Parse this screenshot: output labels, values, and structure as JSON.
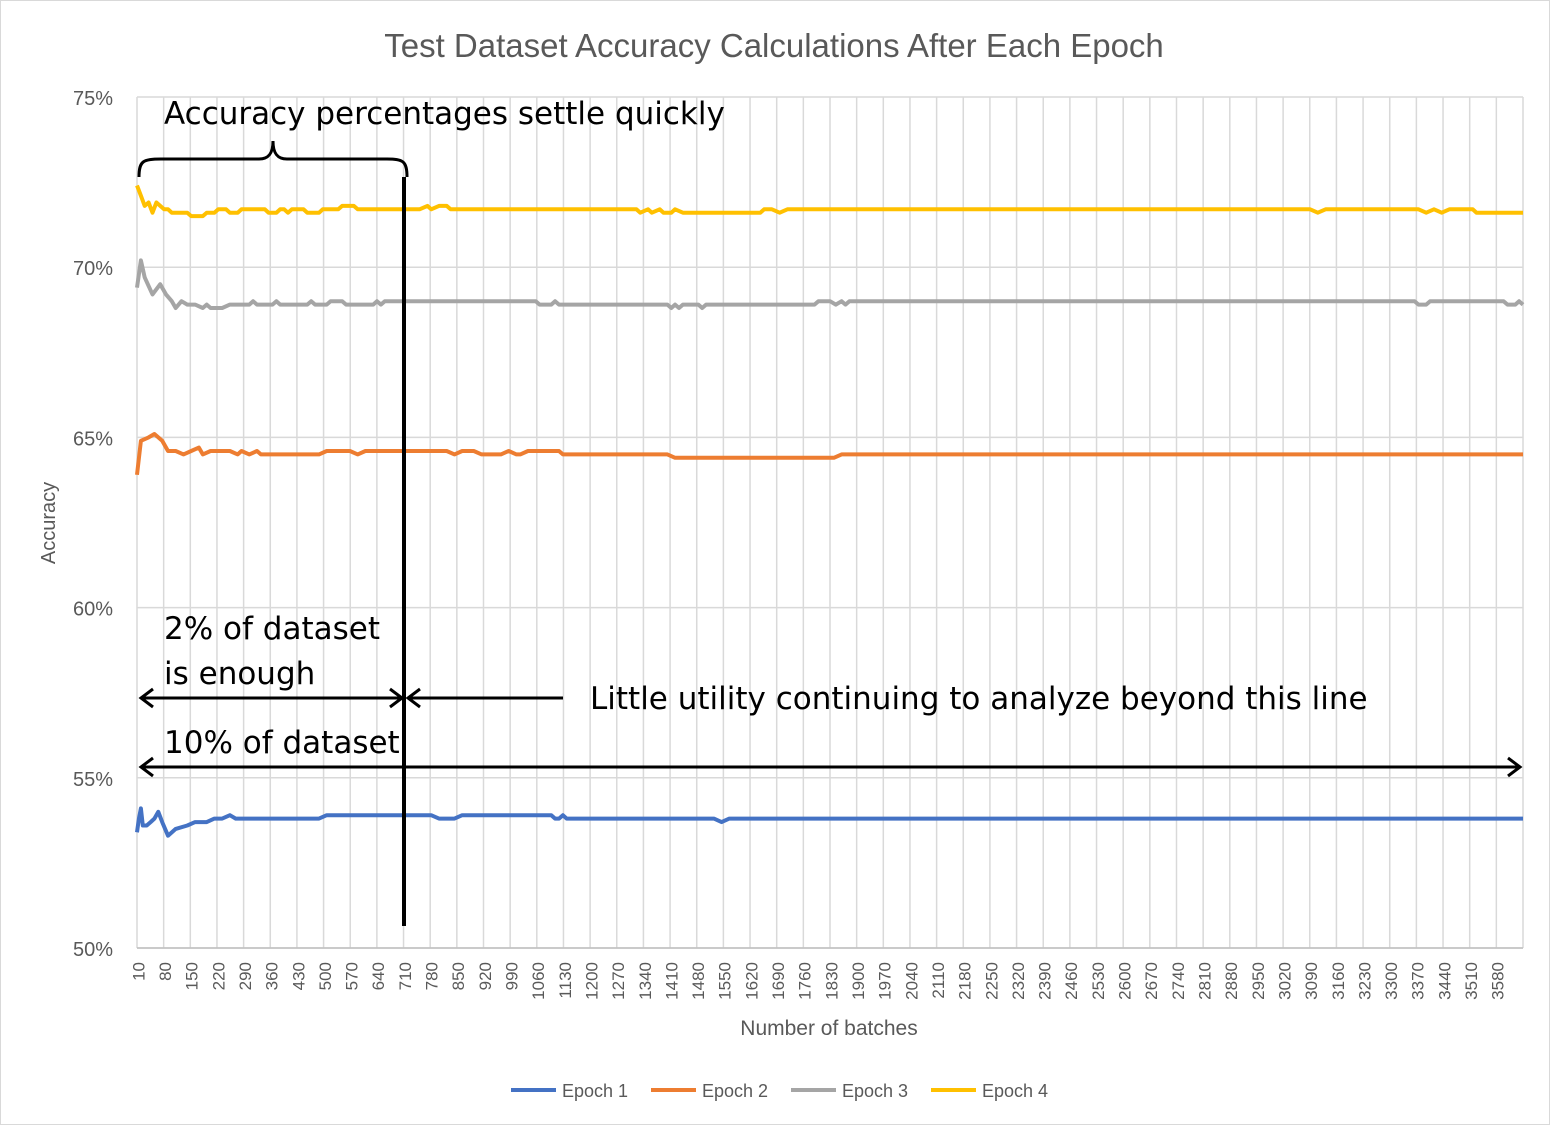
{
  "chart_data": {
    "type": "line",
    "title": "Test Dataset Accuracy Calculations After Each Epoch",
    "xlabel": "Number of batches",
    "ylabel": "Accuracy",
    "ylim": [
      50,
      75
    ],
    "y_ticks": [
      "50%",
      "55%",
      "60%",
      "65%",
      "70%",
      "75%"
    ],
    "y_tick_values": [
      50,
      55,
      60,
      65,
      70,
      75
    ],
    "x_range": [
      10,
      3590
    ],
    "x_tick_labels": [
      "10",
      "80",
      "150",
      "220",
      "290",
      "360",
      "430",
      "500",
      "570",
      "640",
      "710",
      "780",
      "850",
      "920",
      "990",
      "1060",
      "1130",
      "1200",
      "1270",
      "1340",
      "1410",
      "1480",
      "1550",
      "1620",
      "1690",
      "1760",
      "1830",
      "1900",
      "1970",
      "2040",
      "2110",
      "2180",
      "2250",
      "2320",
      "2390",
      "2460",
      "2530",
      "2600",
      "2670",
      "2740",
      "2810",
      "2880",
      "2950",
      "3020",
      "3090",
      "3160",
      "3230",
      "3300",
      "3370",
      "3440",
      "3510",
      "3580"
    ],
    "grid": true,
    "legend_position": "bottom",
    "series": [
      {
        "name": "Epoch 1",
        "color": "#4472C4",
        "points": [
          [
            10,
            53.4
          ],
          [
            15,
            53.8
          ],
          [
            20,
            54.1
          ],
          [
            25,
            53.6
          ],
          [
            35,
            53.6
          ],
          [
            45,
            53.7
          ],
          [
            55,
            53.8
          ],
          [
            65,
            54.0
          ],
          [
            75,
            53.7
          ],
          [
            90,
            53.3
          ],
          [
            110,
            53.5
          ],
          [
            140,
            53.6
          ],
          [
            160,
            53.7
          ],
          [
            190,
            53.7
          ],
          [
            210,
            53.8
          ],
          [
            230,
            53.8
          ],
          [
            250,
            53.9
          ],
          [
            265,
            53.8
          ],
          [
            480,
            53.8
          ],
          [
            500,
            53.9
          ],
          [
            770,
            53.9
          ],
          [
            790,
            53.8
          ],
          [
            830,
            53.8
          ],
          [
            850,
            53.9
          ],
          [
            1080,
            53.9
          ],
          [
            1090,
            53.8
          ],
          [
            1100,
            53.8
          ],
          [
            1110,
            53.9
          ],
          [
            1120,
            53.8
          ],
          [
            1500,
            53.8
          ],
          [
            1520,
            53.7
          ],
          [
            1540,
            53.8
          ],
          [
            3590,
            53.8
          ]
        ]
      },
      {
        "name": "Epoch 2",
        "color": "#ED7D31",
        "points": [
          [
            10,
            63.9
          ],
          [
            20,
            64.9
          ],
          [
            40,
            65.0
          ],
          [
            55,
            65.1
          ],
          [
            75,
            64.9
          ],
          [
            90,
            64.6
          ],
          [
            110,
            64.6
          ],
          [
            130,
            64.5
          ],
          [
            150,
            64.6
          ],
          [
            170,
            64.7
          ],
          [
            180,
            64.5
          ],
          [
            200,
            64.6
          ],
          [
            250,
            64.6
          ],
          [
            270,
            64.5
          ],
          [
            280,
            64.6
          ],
          [
            300,
            64.5
          ],
          [
            320,
            64.6
          ],
          [
            330,
            64.5
          ],
          [
            480,
            64.5
          ],
          [
            500,
            64.6
          ],
          [
            560,
            64.6
          ],
          [
            580,
            64.5
          ],
          [
            600,
            64.6
          ],
          [
            810,
            64.6
          ],
          [
            830,
            64.5
          ],
          [
            850,
            64.6
          ],
          [
            880,
            64.6
          ],
          [
            900,
            64.5
          ],
          [
            950,
            64.5
          ],
          [
            970,
            64.6
          ],
          [
            990,
            64.5
          ],
          [
            1000,
            64.5
          ],
          [
            1020,
            64.6
          ],
          [
            1100,
            64.6
          ],
          [
            1110,
            64.5
          ],
          [
            1380,
            64.5
          ],
          [
            1400,
            64.4
          ],
          [
            1810,
            64.4
          ],
          [
            1830,
            64.5
          ],
          [
            3590,
            64.5
          ]
        ]
      },
      {
        "name": "Epoch 3",
        "color": "#A5A5A5",
        "points": [
          [
            10,
            69.4
          ],
          [
            20,
            70.2
          ],
          [
            30,
            69.7
          ],
          [
            50,
            69.2
          ],
          [
            70,
            69.5
          ],
          [
            85,
            69.2
          ],
          [
            100,
            69.0
          ],
          [
            110,
            68.8
          ],
          [
            125,
            69.0
          ],
          [
            140,
            68.9
          ],
          [
            160,
            68.9
          ],
          [
            180,
            68.8
          ],
          [
            190,
            68.9
          ],
          [
            200,
            68.8
          ],
          [
            230,
            68.8
          ],
          [
            250,
            68.9
          ],
          [
            300,
            68.9
          ],
          [
            310,
            69.0
          ],
          [
            320,
            68.9
          ],
          [
            360,
            68.9
          ],
          [
            370,
            69.0
          ],
          [
            380,
            68.9
          ],
          [
            450,
            68.9
          ],
          [
            460,
            69.0
          ],
          [
            470,
            68.9
          ],
          [
            500,
            68.9
          ],
          [
            510,
            69.0
          ],
          [
            540,
            69.0
          ],
          [
            550,
            68.9
          ],
          [
            620,
            68.9
          ],
          [
            630,
            69.0
          ],
          [
            640,
            68.9
          ],
          [
            650,
            69.0
          ],
          [
            1040,
            69.0
          ],
          [
            1050,
            68.9
          ],
          [
            1080,
            68.9
          ],
          [
            1090,
            69.0
          ],
          [
            1100,
            68.9
          ],
          [
            1380,
            68.9
          ],
          [
            1390,
            68.8
          ],
          [
            1400,
            68.9
          ],
          [
            1410,
            68.8
          ],
          [
            1420,
            68.9
          ],
          [
            1460,
            68.9
          ],
          [
            1470,
            68.8
          ],
          [
            1480,
            68.9
          ],
          [
            1760,
            68.9
          ],
          [
            1770,
            69.0
          ],
          [
            1800,
            69.0
          ],
          [
            1815,
            68.9
          ],
          [
            1830,
            69.0
          ],
          [
            1840,
            68.9
          ],
          [
            1850,
            69.0
          ],
          [
            3310,
            69.0
          ],
          [
            3320,
            68.9
          ],
          [
            3340,
            68.9
          ],
          [
            3350,
            69.0
          ],
          [
            3540,
            69.0
          ],
          [
            3550,
            68.9
          ],
          [
            3570,
            68.9
          ],
          [
            3580,
            69.0
          ],
          [
            3590,
            68.9
          ]
        ]
      },
      {
        "name": "Epoch 4",
        "color": "#FFC000",
        "points": [
          [
            10,
            72.4
          ],
          [
            20,
            72.1
          ],
          [
            30,
            71.8
          ],
          [
            40,
            71.9
          ],
          [
            50,
            71.6
          ],
          [
            60,
            71.9
          ],
          [
            80,
            71.7
          ],
          [
            90,
            71.7
          ],
          [
            100,
            71.6
          ],
          [
            140,
            71.6
          ],
          [
            150,
            71.5
          ],
          [
            180,
            71.5
          ],
          [
            190,
            71.6
          ],
          [
            210,
            71.6
          ],
          [
            220,
            71.7
          ],
          [
            240,
            71.7
          ],
          [
            250,
            71.6
          ],
          [
            270,
            71.6
          ],
          [
            280,
            71.7
          ],
          [
            340,
            71.7
          ],
          [
            350,
            71.6
          ],
          [
            370,
            71.6
          ],
          [
            380,
            71.7
          ],
          [
            390,
            71.7
          ],
          [
            400,
            71.6
          ],
          [
            410,
            71.7
          ],
          [
            440,
            71.7
          ],
          [
            450,
            71.6
          ],
          [
            480,
            71.6
          ],
          [
            490,
            71.7
          ],
          [
            530,
            71.7
          ],
          [
            540,
            71.8
          ],
          [
            570,
            71.8
          ],
          [
            580,
            71.7
          ],
          [
            740,
            71.7
          ],
          [
            760,
            71.8
          ],
          [
            770,
            71.7
          ],
          [
            790,
            71.8
          ],
          [
            810,
            71.8
          ],
          [
            820,
            71.7
          ],
          [
            1300,
            71.7
          ],
          [
            1310,
            71.6
          ],
          [
            1330,
            71.7
          ],
          [
            1340,
            71.6
          ],
          [
            1360,
            71.7
          ],
          [
            1370,
            71.6
          ],
          [
            1390,
            71.6
          ],
          [
            1400,
            71.7
          ],
          [
            1420,
            71.6
          ],
          [
            1620,
            71.6
          ],
          [
            1630,
            71.7
          ],
          [
            1650,
            71.7
          ],
          [
            1670,
            71.6
          ],
          [
            1690,
            71.7
          ],
          [
            3040,
            71.7
          ],
          [
            3060,
            71.6
          ],
          [
            3080,
            71.7
          ],
          [
            3320,
            71.7
          ],
          [
            3340,
            71.6
          ],
          [
            3360,
            71.7
          ],
          [
            3380,
            71.6
          ],
          [
            3400,
            71.7
          ],
          [
            3460,
            71.7
          ],
          [
            3470,
            71.6
          ],
          [
            3590,
            71.6
          ]
        ]
      }
    ]
  },
  "annotations": {
    "top_label": "Accuracy percentages settle quickly",
    "two_pct_line1": "2% of dataset",
    "two_pct_line2": "is enough",
    "ten_pct": "10% of dataset",
    "little_utility": "Little utility continuing to analyze beyond this line"
  }
}
